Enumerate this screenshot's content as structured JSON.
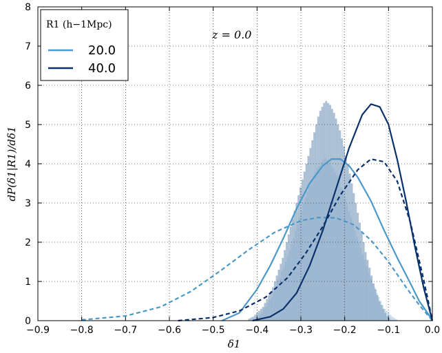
{
  "chart_data": {
    "type": "line",
    "xlabel": "δ1",
    "ylabel": "dP(δ1|R1)/dδ1",
    "xlim": [
      -0.9,
      0.0
    ],
    "ylim": [
      0,
      8
    ],
    "xticks": [
      "−0.9",
      "−0.8",
      "−0.7",
      "−0.6",
      "−0.5",
      "−0.4",
      "−0.3",
      "−0.2",
      "−0.1",
      "0.0"
    ],
    "yticks": [
      "0",
      "1",
      "2",
      "3",
      "4",
      "5",
      "6",
      "7",
      "8"
    ],
    "grid": true,
    "annotation": "z = 0.0",
    "legend": {
      "placement": "top-left",
      "title": "R1 (h−1Mpc)",
      "entries": [
        {
          "label": "20.0",
          "color": "#4a98c9"
        },
        {
          "label": "40.0",
          "color": "#08306b"
        }
      ]
    },
    "series": [
      {
        "name": "20.0",
        "style": "solid",
        "color": "#4a98c9",
        "x": [
          -0.48,
          -0.44,
          -0.4,
          -0.37,
          -0.34,
          -0.31,
          -0.28,
          -0.25,
          -0.23,
          -0.21,
          -0.19,
          -0.17,
          -0.14,
          -0.11,
          -0.08,
          -0.05,
          -0.03,
          -0.01,
          0.0
        ],
        "y": [
          0.0,
          0.2,
          0.8,
          1.4,
          2.1,
          2.85,
          3.5,
          3.95,
          4.12,
          4.12,
          3.95,
          3.65,
          3.05,
          2.3,
          1.6,
          0.95,
          0.5,
          0.18,
          0.0
        ]
      },
      {
        "name": "20.0",
        "style": "dashed",
        "color": "#4a98c9",
        "x": [
          -0.8,
          -0.7,
          -0.62,
          -0.55,
          -0.48,
          -0.42,
          -0.36,
          -0.3,
          -0.26,
          -0.22,
          -0.18,
          -0.14,
          -0.1,
          -0.06,
          -0.03,
          0.0
        ],
        "y": [
          0.02,
          0.12,
          0.35,
          0.75,
          1.3,
          1.8,
          2.25,
          2.55,
          2.63,
          2.62,
          2.45,
          2.05,
          1.5,
          0.85,
          0.4,
          0.0
        ]
      },
      {
        "name": "40.0",
        "style": "solid",
        "color": "#08306b",
        "x": [
          -0.41,
          -0.37,
          -0.34,
          -0.31,
          -0.28,
          -0.25,
          -0.22,
          -0.19,
          -0.16,
          -0.14,
          -0.12,
          -0.1,
          -0.08,
          -0.06,
          -0.04,
          -0.02,
          0.0
        ],
        "y": [
          0.0,
          0.1,
          0.3,
          0.7,
          1.4,
          2.3,
          3.35,
          4.4,
          5.25,
          5.52,
          5.45,
          5.0,
          4.1,
          3.05,
          1.9,
          0.85,
          0.0
        ]
      },
      {
        "name": "40.0",
        "style": "dashed",
        "color": "#08306b",
        "x": [
          -0.58,
          -0.5,
          -0.44,
          -0.38,
          -0.33,
          -0.29,
          -0.25,
          -0.21,
          -0.17,
          -0.14,
          -0.11,
          -0.08,
          -0.05,
          -0.02,
          0.0
        ],
        "y": [
          0.0,
          0.08,
          0.25,
          0.6,
          1.1,
          1.7,
          2.4,
          3.2,
          3.85,
          4.12,
          4.05,
          3.55,
          2.5,
          1.05,
          0.0
        ]
      }
    ],
    "histograms": [
      {
        "name": "20.0",
        "color": "#bcd7ea",
        "bin_width": 0.0045,
        "x_start": -0.8,
        "values": [
          0.05,
          0.02,
          0.0,
          0.0,
          0.0,
          0.0,
          0.0,
          0.0,
          0.0,
          0.0,
          0.0,
          0.0,
          0.0,
          0.0,
          0.0,
          0.0,
          0.0,
          0.0,
          0.0,
          0.0,
          0.0,
          0.0,
          0.0,
          0.0,
          0.0,
          0.0,
          0.0,
          0.0,
          0.0,
          0.0,
          0.0,
          0.0,
          0.0,
          0.0,
          0.0,
          0.0,
          0.0,
          0.0,
          0.0,
          0.0,
          0.0,
          0.0,
          0.0,
          0.0,
          0.0,
          0.0,
          0.0,
          0.0,
          0.0,
          0.0,
          0.0,
          0.0,
          0.0,
          0.0,
          0.0,
          0.0,
          0.0,
          0.0,
          0.0,
          0.0,
          0.0,
          0.0,
          0.0,
          0.0,
          0.0,
          0.0,
          0.0,
          0.0,
          0.0,
          0.0,
          0.0,
          0.0,
          0.0,
          0.0,
          0.0,
          0.0,
          0.0,
          0.0,
          0.0,
          0.0,
          0.0,
          0.0,
          0.0,
          0.0,
          0.0,
          0.0,
          0.0,
          0.0,
          0.05,
          0.1,
          0.15,
          0.2,
          0.3,
          0.35,
          0.45,
          0.55,
          0.6,
          0.75,
          0.85,
          1.0,
          1.1,
          1.25,
          1.35,
          1.5,
          1.65,
          1.8,
          1.95,
          2.1,
          2.3,
          2.45,
          2.65,
          2.8,
          3.0,
          3.15,
          3.3,
          3.45,
          3.6,
          3.7,
          3.8,
          3.9,
          3.95,
          4.05,
          4.1,
          4.15,
          4.1,
          4.05,
          3.95,
          3.9,
          3.8,
          3.7,
          3.55,
          3.4,
          3.25,
          3.1,
          2.95,
          2.8,
          2.65,
          2.45,
          2.3,
          2.15,
          2.0,
          1.85,
          1.7,
          1.55,
          1.4,
          1.25,
          1.1,
          0.95,
          0.85,
          0.7,
          0.6,
          0.5,
          0.4,
          0.3,
          0.25,
          0.2,
          0.15,
          0.1,
          0.07,
          0.04
        ]
      },
      {
        "name": "40.0",
        "color": "#8fa9c7",
        "bin_width": 0.0045,
        "x_start": -0.42,
        "values": [
          0.05,
          0.08,
          0.1,
          0.15,
          0.2,
          0.25,
          0.3,
          0.35,
          0.45,
          0.55,
          0.65,
          0.75,
          0.85,
          1.0,
          1.15,
          1.3,
          1.45,
          1.6,
          1.8,
          2.0,
          2.2,
          2.4,
          2.6,
          2.8,
          3.0,
          3.2,
          3.4,
          3.6,
          3.8,
          4.0,
          4.2,
          4.4,
          4.6,
          4.8,
          5.0,
          5.2,
          5.35,
          5.45,
          5.55,
          5.6,
          5.55,
          5.5,
          5.4,
          5.3,
          5.15,
          5.0,
          4.85,
          4.65,
          4.45,
          4.2,
          4.0,
          3.75,
          3.5,
          3.25,
          3.0,
          2.75,
          2.5,
          2.25,
          2.0,
          1.75,
          1.55,
          1.35,
          1.15,
          0.95,
          0.8,
          0.65,
          0.5,
          0.4,
          0.3,
          0.2,
          0.12,
          0.06
        ]
      }
    ]
  }
}
